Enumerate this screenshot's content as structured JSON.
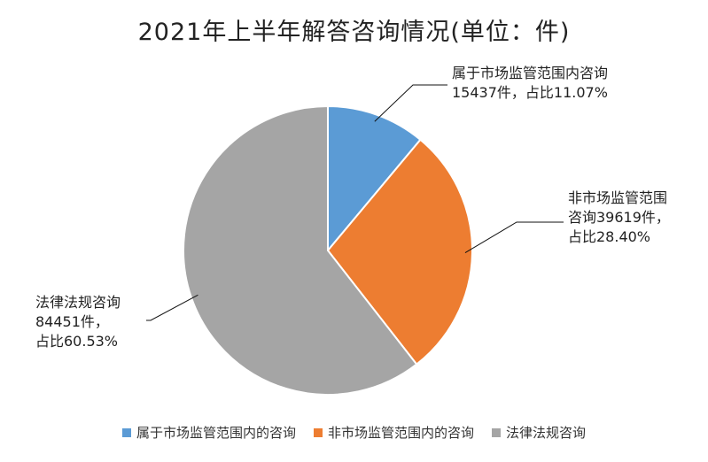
{
  "chart_data": {
    "type": "pie",
    "title": "2021年上半年解答咨询情况(单位：件)",
    "slices": [
      {
        "name": "属于市场监管范围内的咨询",
        "value": 15437,
        "percent": 11.07,
        "color": "#5b9bd5",
        "label_lines": [
          "属于市场监管范围内咨询",
          "15437件，占比11.07%"
        ]
      },
      {
        "name": "非市场监管范围内的咨询",
        "value": 39619,
        "percent": 28.4,
        "color": "#ed7d31",
        "label_lines": [
          "非市场监管范围",
          "咨询39619件，",
          "占比28.40%"
        ]
      },
      {
        "name": "法律法规咨询",
        "value": 84451,
        "percent": 60.53,
        "color": "#a5a5a5",
        "label_lines": [
          "法律法规咨询",
          "84451件，",
          "占比60.53%"
        ]
      }
    ],
    "start_angle": "top",
    "direction": "clockwise",
    "legend_position": "bottom"
  }
}
